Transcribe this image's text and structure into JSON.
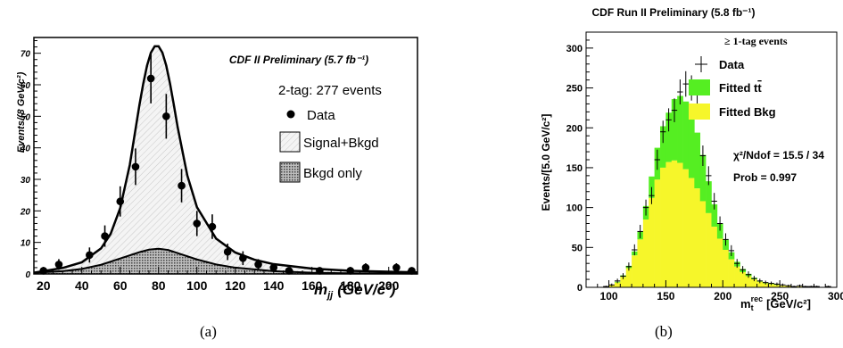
{
  "captions": {
    "left": "(a)",
    "right": "(b)"
  },
  "chart_data": [
    {
      "type": "scatter",
      "title": "CDF II Preliminary (5.7 fb⁻¹)",
      "subtitle": "2-tag: 277 events",
      "xlabel": "m_jj (GeV/c²)",
      "xlabel_main": "m",
      "xlabel_sub": "jj",
      "xlabel_units": "(GeV/c²)",
      "ylabel": "Events/(8 GeV/c²)",
      "xlim": [
        15,
        215
      ],
      "ylim": [
        0,
        75
      ],
      "xticks": [
        20,
        40,
        60,
        80,
        100,
        120,
        140,
        160,
        180,
        200
      ],
      "yticks": [
        0,
        10,
        20,
        30,
        40,
        50,
        60,
        70
      ],
      "legend_position": "right",
      "legend": {
        "data": "Data",
        "signal": "Signal+Bkgd",
        "background": "Bkgd only"
      },
      "colors": {
        "data": "#000000",
        "signal_fill": "#e8e8e8",
        "bkgd_fill": "#9a9a9a"
      },
      "data_points": [
        {
          "x": 20,
          "y": 1,
          "err": 1
        },
        {
          "x": 28,
          "y": 3,
          "err": 1.7
        },
        {
          "x": 44,
          "y": 6,
          "err": 2.4
        },
        {
          "x": 52,
          "y": 12,
          "err": 3.4
        },
        {
          "x": 60,
          "y": 23,
          "err": 4.8
        },
        {
          "x": 68,
          "y": 34,
          "err": 5.8
        },
        {
          "x": 76,
          "y": 62,
          "err": 7.9
        },
        {
          "x": 84,
          "y": 50,
          "err": 7.1
        },
        {
          "x": 92,
          "y": 28,
          "err": 5.3
        },
        {
          "x": 100,
          "y": 16,
          "err": 4
        },
        {
          "x": 108,
          "y": 15,
          "err": 3.9
        },
        {
          "x": 116,
          "y": 7,
          "err": 2.6
        },
        {
          "x": 124,
          "y": 5,
          "err": 2.2
        },
        {
          "x": 132,
          "y": 3,
          "err": 1.7
        },
        {
          "x": 140,
          "y": 2,
          "err": 1.4
        },
        {
          "x": 148,
          "y": 1,
          "err": 1
        },
        {
          "x": 164,
          "y": 1,
          "err": 1
        },
        {
          "x": 180,
          "y": 1,
          "err": 1
        },
        {
          "x": 188,
          "y": 2,
          "err": 1.4
        },
        {
          "x": 204,
          "y": 2,
          "err": 1.4
        },
        {
          "x": 212,
          "y": 1,
          "err": 1
        }
      ],
      "signal_bkgd_curve": {
        "x": [
          15,
          20,
          30,
          40,
          50,
          55,
          60,
          65,
          70,
          72,
          74,
          76,
          78,
          80,
          82,
          84,
          86,
          88,
          90,
          95,
          100,
          110,
          120,
          130,
          140,
          160,
          180,
          200,
          215
        ],
        "y": [
          0.4,
          0.9,
          1.9,
          3.7,
          8.1,
          12.7,
          20.9,
          34.6,
          53.5,
          60.3,
          66.1,
          70.2,
          72.2,
          72.2,
          70.2,
          66.1,
          60.3,
          53.5,
          46.4,
          31.2,
          21.2,
          11.2,
          6.8,
          4.5,
          3.1,
          1.7,
          1.0,
          0.7,
          0.5
        ]
      },
      "bkgd_curve": {
        "x": [
          15,
          30,
          40,
          50,
          60,
          70,
          75,
          80,
          85,
          90,
          100,
          110,
          120,
          140,
          160,
          180,
          215
        ],
        "y": [
          0.4,
          0.9,
          1.6,
          2.9,
          4.9,
          6.9,
          7.7,
          8.0,
          7.6,
          6.6,
          4.6,
          3.0,
          2.0,
          0.9,
          0.4,
          0.2,
          0.1
        ]
      }
    },
    {
      "type": "bar",
      "title": "CDF Run II Preliminary (5.8 fb⁻¹)",
      "subtitle": "≥ 1-tag events",
      "xlabel": "m_t^rec [GeV/c²]",
      "xlabel_main": "m",
      "xlabel_sub": "t",
      "xlabel_sup": "rec",
      "xlabel_units": "[GeV/c²]",
      "ylabel": "Events/[5.0 GeV/c²]",
      "xlim": [
        80,
        300
      ],
      "ylim": [
        0,
        320
      ],
      "xticks": [
        100,
        150,
        200,
        250,
        300
      ],
      "yticks": [
        0,
        50,
        100,
        150,
        200,
        250,
        300
      ],
      "legend_position": "top-right",
      "legend": {
        "data": "Data",
        "ttbar": "Fitted t̅t",
        "ttbar_main": "Fitted t",
        "ttbar_bar": "t",
        "bkg": "Fitted Bkg"
      },
      "stats": {
        "chi2": "χ²/Ndof = 15.5 / 34",
        "prob": "Prob = 0.997"
      },
      "colors": {
        "ttbar": "#55ee22",
        "bkg": "#f6f62a",
        "data": "#000000"
      },
      "bin_width": 5,
      "bin_edges_start": 90,
      "bkg": [
        0,
        1,
        3,
        6,
        13,
        24,
        40,
        60,
        85,
        112,
        135,
        150,
        157,
        159,
        156,
        148,
        137,
        124,
        108,
        93,
        76,
        61,
        47,
        35,
        26,
        19,
        14,
        10,
        7,
        5,
        4,
        3,
        2,
        2,
        1,
        1,
        1,
        1,
        0,
        0,
        0,
        0
      ],
      "ttbar": [
        0,
        0,
        0,
        1,
        2,
        3,
        5,
        10,
        17,
        27,
        40,
        52,
        62,
        77,
        84,
        85,
        83,
        70,
        58,
        40,
        28,
        19,
        13,
        9,
        6,
        4,
        3,
        2,
        1,
        1,
        1,
        1,
        0,
        0,
        0,
        0,
        0,
        0,
        0,
        0,
        0,
        0
      ],
      "data": [
        0,
        1,
        3,
        8,
        14,
        26,
        47,
        70,
        100,
        115,
        160,
        195,
        210,
        222,
        245,
        255,
        250,
        228,
        165,
        140,
        108,
        80,
        60,
        46,
        30,
        22,
        16,
        11,
        8,
        6,
        5,
        4,
        3,
        2,
        1,
        2,
        1,
        1,
        1,
        0,
        1,
        0
      ]
    }
  ]
}
